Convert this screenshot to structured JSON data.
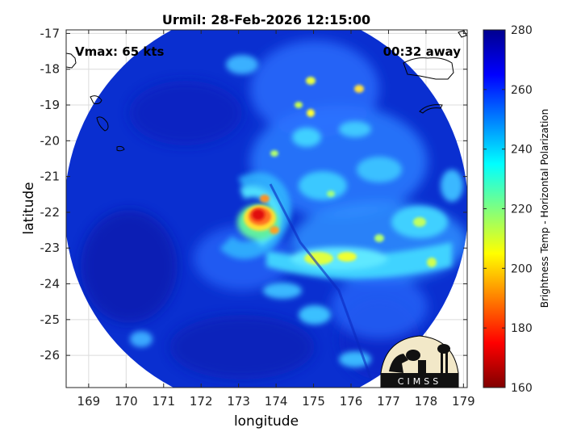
{
  "title": "Urmil: 28-Feb-2026 12:15:00",
  "annotations": {
    "vmax": "Vmax: 65 kts",
    "away": "00:32 away"
  },
  "axes": {
    "xlabel": "longitude",
    "ylabel": "latitude",
    "xlim": [
      168.4,
      179.1
    ],
    "ylim": [
      -26.9,
      -16.9
    ],
    "xticks": [
      "169",
      "170",
      "171",
      "172",
      "173",
      "174",
      "175",
      "176",
      "177",
      "178",
      "179"
    ],
    "yticks": [
      "-17",
      "-18",
      "-19",
      "-20",
      "-21",
      "-22",
      "-23",
      "-24",
      "-25",
      "-26"
    ]
  },
  "colorbar": {
    "label": "Brightness Temp - Horizontal Polarization",
    "range": [
      160,
      280
    ],
    "ticks": [
      "280",
      "260",
      "240",
      "220",
      "200",
      "180",
      "160"
    ],
    "colormap": "jet"
  },
  "storm": {
    "center_lon": 173.4,
    "center_lat": -22.2
  },
  "logo": {
    "text": "CIMSS"
  },
  "colors": {
    "background": "#0a2fd0",
    "coastline": "#000000"
  }
}
